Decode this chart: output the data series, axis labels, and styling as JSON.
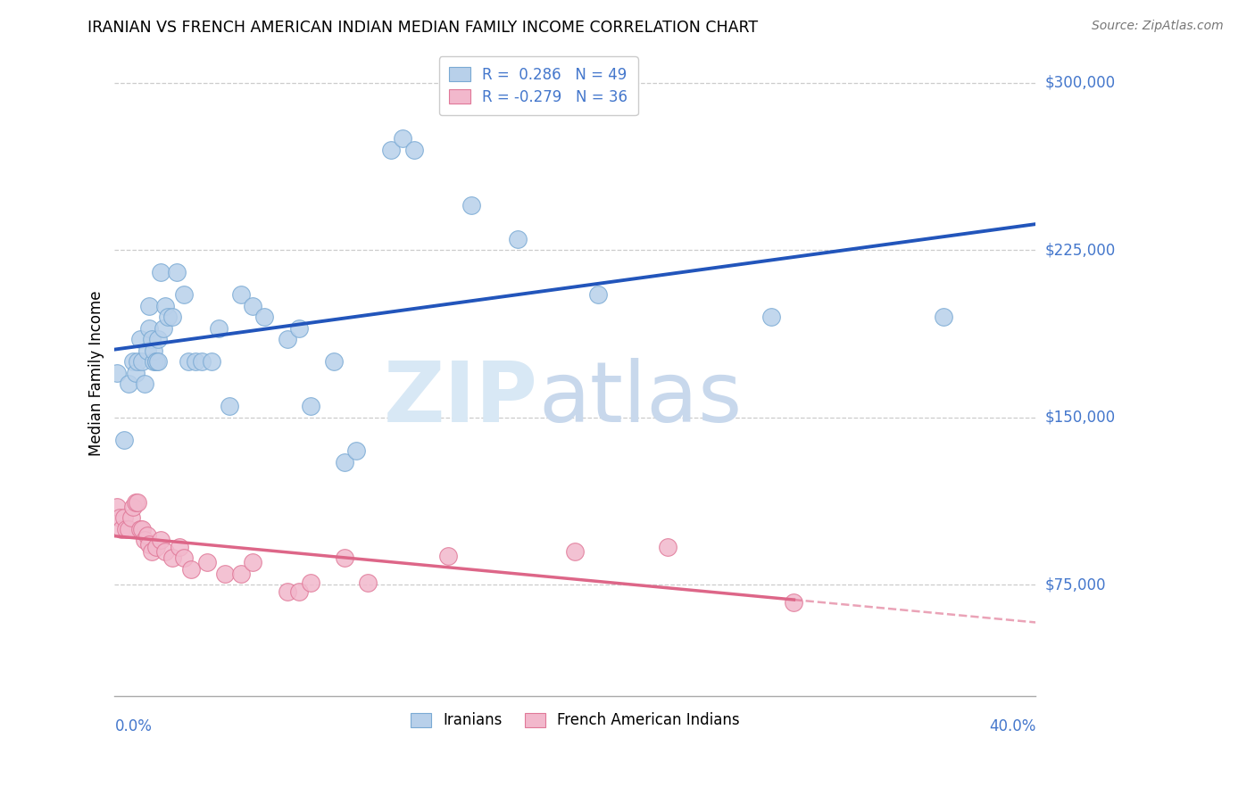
{
  "title": "IRANIAN VS FRENCH AMERICAN INDIAN MEDIAN FAMILY INCOME CORRELATION CHART",
  "source": "Source: ZipAtlas.com",
  "ylabel": "Median Family Income",
  "ytick_vals": [
    75000,
    150000,
    225000,
    300000
  ],
  "ytick_labels": [
    "$75,000",
    "$150,000",
    "$225,000",
    "$300,000"
  ],
  "xmin": 0.0,
  "xmax": 0.4,
  "ymin": 25000,
  "ymax": 315000,
  "iranians_color": "#b8d0ea",
  "iranians_edge": "#7aaad4",
  "french_color": "#f2b8cc",
  "french_edge": "#e07898",
  "trendline_blue": "#2255bb",
  "trendline_pink": "#dd6688",
  "axis_label_color": "#4477cc",
  "watermark_zip_color": "#d8e8f5",
  "watermark_atlas_color": "#c8d8ec",
  "legend_line1": "R =  0.286   N = 49",
  "legend_line2": "R = -0.279   N = 36",
  "legend_label_blue": "Iranians",
  "legend_label_pink": "French American Indians",
  "iranians_x": [
    0.001,
    0.004,
    0.006,
    0.008,
    0.009,
    0.01,
    0.011,
    0.012,
    0.013,
    0.014,
    0.015,
    0.015,
    0.016,
    0.017,
    0.017,
    0.018,
    0.018,
    0.019,
    0.019,
    0.02,
    0.021,
    0.022,
    0.023,
    0.025,
    0.027,
    0.03,
    0.032,
    0.035,
    0.038,
    0.042,
    0.045,
    0.05,
    0.055,
    0.06,
    0.065,
    0.075,
    0.08,
    0.085,
    0.095,
    0.1,
    0.105,
    0.12,
    0.125,
    0.13,
    0.155,
    0.175,
    0.21,
    0.285,
    0.36
  ],
  "iranians_y": [
    170000,
    140000,
    165000,
    175000,
    170000,
    175000,
    185000,
    175000,
    165000,
    180000,
    190000,
    200000,
    185000,
    175000,
    180000,
    175000,
    175000,
    185000,
    175000,
    215000,
    190000,
    200000,
    195000,
    195000,
    215000,
    205000,
    175000,
    175000,
    175000,
    175000,
    190000,
    155000,
    205000,
    200000,
    195000,
    185000,
    190000,
    155000,
    175000,
    130000,
    135000,
    270000,
    275000,
    270000,
    245000,
    230000,
    205000,
    195000,
    195000
  ],
  "french_x": [
    0.001,
    0.002,
    0.003,
    0.004,
    0.005,
    0.006,
    0.007,
    0.008,
    0.009,
    0.01,
    0.011,
    0.012,
    0.013,
    0.014,
    0.015,
    0.016,
    0.018,
    0.02,
    0.022,
    0.025,
    0.028,
    0.03,
    0.033,
    0.04,
    0.048,
    0.055,
    0.06,
    0.075,
    0.08,
    0.085,
    0.1,
    0.11,
    0.145,
    0.2,
    0.24,
    0.295
  ],
  "french_y": [
    110000,
    105000,
    100000,
    105000,
    100000,
    100000,
    105000,
    110000,
    112000,
    112000,
    100000,
    100000,
    95000,
    97000,
    93000,
    90000,
    92000,
    95000,
    90000,
    87000,
    92000,
    87000,
    82000,
    85000,
    80000,
    80000,
    85000,
    72000,
    72000,
    76000,
    87000,
    76000,
    88000,
    90000,
    92000,
    67000
  ]
}
